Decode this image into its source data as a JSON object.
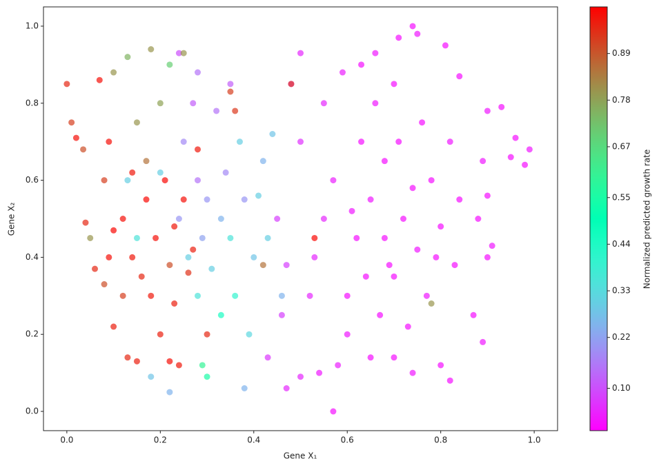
{
  "chart_data": {
    "type": "scatter",
    "xlabel": "Gene X₁",
    "ylabel": "Gene X₂",
    "colorbar_label": "Normalized predicted growth rate",
    "colormap": "rainbow",
    "alpha": 0.7,
    "xlim": [
      -0.05,
      1.05
    ],
    "ylim": [
      -0.05,
      1.05
    ],
    "xticks": [
      {
        "value": 0,
        "label": "0.0"
      },
      0.2,
      0.4,
      0.6,
      0.8,
      {
        "value": 1,
        "label": "1.0"
      }
    ],
    "yticks": [
      {
        "value": 0,
        "label": "0.0"
      },
      0.2,
      0.4,
      0.6,
      0.8,
      {
        "value": 1,
        "label": "1.0"
      }
    ],
    "clim": [
      0,
      1
    ],
    "cticks": [
      {
        "value": 0.1,
        "label": "0.10"
      },
      0.22,
      0.33,
      0.44,
      0.55,
      0.67,
      0.78,
      0.89
    ],
    "x": [
      0.57,
      0.74,
      0.75,
      0.71,
      0.66,
      0.81,
      0.63,
      0.59,
      0.84,
      0.9,
      0.93,
      0.96,
      0.99,
      0.98,
      0.95,
      0.89,
      0.9,
      0.88,
      0.91,
      0.9,
      0.87,
      0.89,
      0.82,
      0.8,
      0.74,
      0.7,
      0.65,
      0.58,
      0.54,
      0.5,
      0.47,
      0.6,
      0.62,
      0.65,
      0.68,
      0.7,
      0.72,
      0.75,
      0.78,
      0.8,
      0.77,
      0.73,
      0.67,
      0.63,
      0.66,
      0.7,
      0.76,
      0.82,
      0.84,
      0.83,
      0.57,
      0.55,
      0.53,
      0.52,
      0.5,
      0.55,
      0.48,
      0.5,
      0.45,
      0.47,
      0.46,
      0.43,
      0.6,
      0.68,
      0.74,
      0.69,
      0.61,
      0.64,
      0.71,
      0.79,
      0.22,
      0.18,
      0.38,
      0.3,
      0.29,
      0.41,
      0.43,
      0.4,
      0.35,
      0.33,
      0.3,
      0.28,
      0.25,
      0.27,
      0.32,
      0.37,
      0.36,
      0.33,
      0.28,
      0.26,
      0.24,
      0.31,
      0.39,
      0.44,
      0.42,
      0.2,
      0.15,
      0.13,
      0.46,
      0.38,
      0.34,
      0.29,
      0.35,
      0.28,
      0.24,
      0,
      0.01,
      0.02,
      0.035,
      0.07,
      0.09,
      0.1,
      0.13,
      0.18,
      0.22,
      0.25,
      0.08,
      0.05,
      0.04,
      0.06,
      0.08,
      0.1,
      0.12,
      0.14,
      0.16,
      0.18,
      0.2,
      0.22,
      0.24,
      0.15,
      0.13,
      0.1,
      0.17,
      0.19,
      0.21,
      0.23,
      0.25,
      0.27,
      0.26,
      0.22,
      0.17,
      0.15,
      0.2,
      0.3,
      0.35,
      0.36,
      0.12,
      0.09,
      0.14,
      0.23,
      0.48,
      0.53,
      0.78,
      0.42,
      0.28
    ],
    "y": [
      0,
      1,
      0.98,
      0.97,
      0.93,
      0.95,
      0.9,
      0.88,
      0.87,
      0.78,
      0.79,
      0.71,
      0.68,
      0.64,
      0.66,
      0.65,
      0.56,
      0.5,
      0.43,
      0.4,
      0.25,
      0.18,
      0.08,
      0.12,
      0.1,
      0.14,
      0.14,
      0.12,
      0.1,
      0.09,
      0.06,
      0.3,
      0.45,
      0.55,
      0.65,
      0.35,
      0.5,
      0.42,
      0.6,
      0.48,
      0.3,
      0.22,
      0.25,
      0.7,
      0.8,
      0.85,
      0.75,
      0.7,
      0.55,
      0.38,
      0.6,
      0.5,
      0.4,
      0.3,
      0.7,
      0.8,
      0.85,
      0.93,
      0.5,
      0.38,
      0.25,
      0.14,
      0.2,
      0.45,
      0.58,
      0.38,
      0.52,
      0.35,
      0.7,
      0.4,
      0.05,
      0.09,
      0.06,
      0.09,
      0.12,
      0.56,
      0.45,
      0.4,
      0.45,
      0.5,
      0.55,
      0.6,
      0.7,
      0.8,
      0.78,
      0.7,
      0.3,
      0.25,
      0.3,
      0.4,
      0.5,
      0.37,
      0.2,
      0.72,
      0.65,
      0.62,
      0.45,
      0.6,
      0.3,
      0.55,
      0.62,
      0.45,
      0.85,
      0.88,
      0.93,
      0.85,
      0.75,
      0.71,
      0.68,
      0.86,
      0.7,
      0.88,
      0.92,
      0.94,
      0.9,
      0.93,
      0.6,
      0.45,
      0.49,
      0.37,
      0.33,
      0.47,
      0.5,
      0.4,
      0.35,
      0.3,
      0.2,
      0.13,
      0.12,
      0.13,
      0.14,
      0.22,
      0.55,
      0.45,
      0.6,
      0.48,
      0.55,
      0.42,
      0.36,
      0.38,
      0.65,
      0.75,
      0.8,
      0.2,
      0.83,
      0.78,
      0.3,
      0.4,
      0.62,
      0.28,
      0.85,
      0.45,
      0.28,
      0.38,
      0.68
    ],
    "c": [
      0.02,
      0.02,
      0.03,
      0.02,
      0.03,
      0.02,
      0.02,
      0.04,
      0.02,
      0.03,
      0.02,
      0.02,
      0.03,
      0.02,
      0.02,
      0.03,
      0.02,
      0.02,
      0.03,
      0.02,
      0.02,
      0.03,
      0.02,
      0.02,
      0.03,
      0.02,
      0.02,
      0.04,
      0.03,
      0.05,
      0.05,
      0.02,
      0.02,
      0.03,
      0.02,
      0.02,
      0.02,
      0.03,
      0.02,
      0.02,
      0.03,
      0.02,
      0.02,
      0.02,
      0.03,
      0.02,
      0.02,
      0.03,
      0.02,
      0.02,
      0.04,
      0.05,
      0.05,
      0.05,
      0.06,
      0.05,
      0.06,
      0.05,
      0.08,
      0.08,
      0.08,
      0.07,
      0.03,
      0.02,
      0.02,
      0.02,
      0.03,
      0.02,
      0.02,
      0.02,
      0.25,
      0.28,
      0.25,
      0.55,
      0.6,
      0.3,
      0.3,
      0.28,
      0.35,
      0.25,
      0.2,
      0.15,
      0.18,
      0.12,
      0.15,
      0.3,
      0.4,
      0.45,
      0.35,
      0.3,
      0.2,
      0.3,
      0.32,
      0.28,
      0.25,
      0.3,
      0.35,
      0.3,
      0.25,
      0.2,
      0.18,
      0.22,
      0.12,
      0.15,
      0.1,
      0.95,
      0.92,
      0.98,
      0.9,
      0.98,
      0.98,
      0.8,
      0.75,
      0.8,
      0.7,
      0.8,
      0.92,
      0.8,
      0.95,
      0.95,
      0.9,
      0.99,
      0.98,
      0.97,
      0.95,
      0.97,
      0.96,
      0.98,
      0.97,
      0.96,
      0.95,
      0.96,
      0.99,
      0.98,
      0.99,
      0.97,
      0.98,
      0.96,
      0.94,
      0.9,
      0.85,
      0.8,
      0.78,
      0.95,
      0.92,
      0.93,
      0.92,
      0.98,
      0.97,
      0.96,
      0.93,
      0.99,
      0.8,
      0.85,
      0.97
    ]
  }
}
